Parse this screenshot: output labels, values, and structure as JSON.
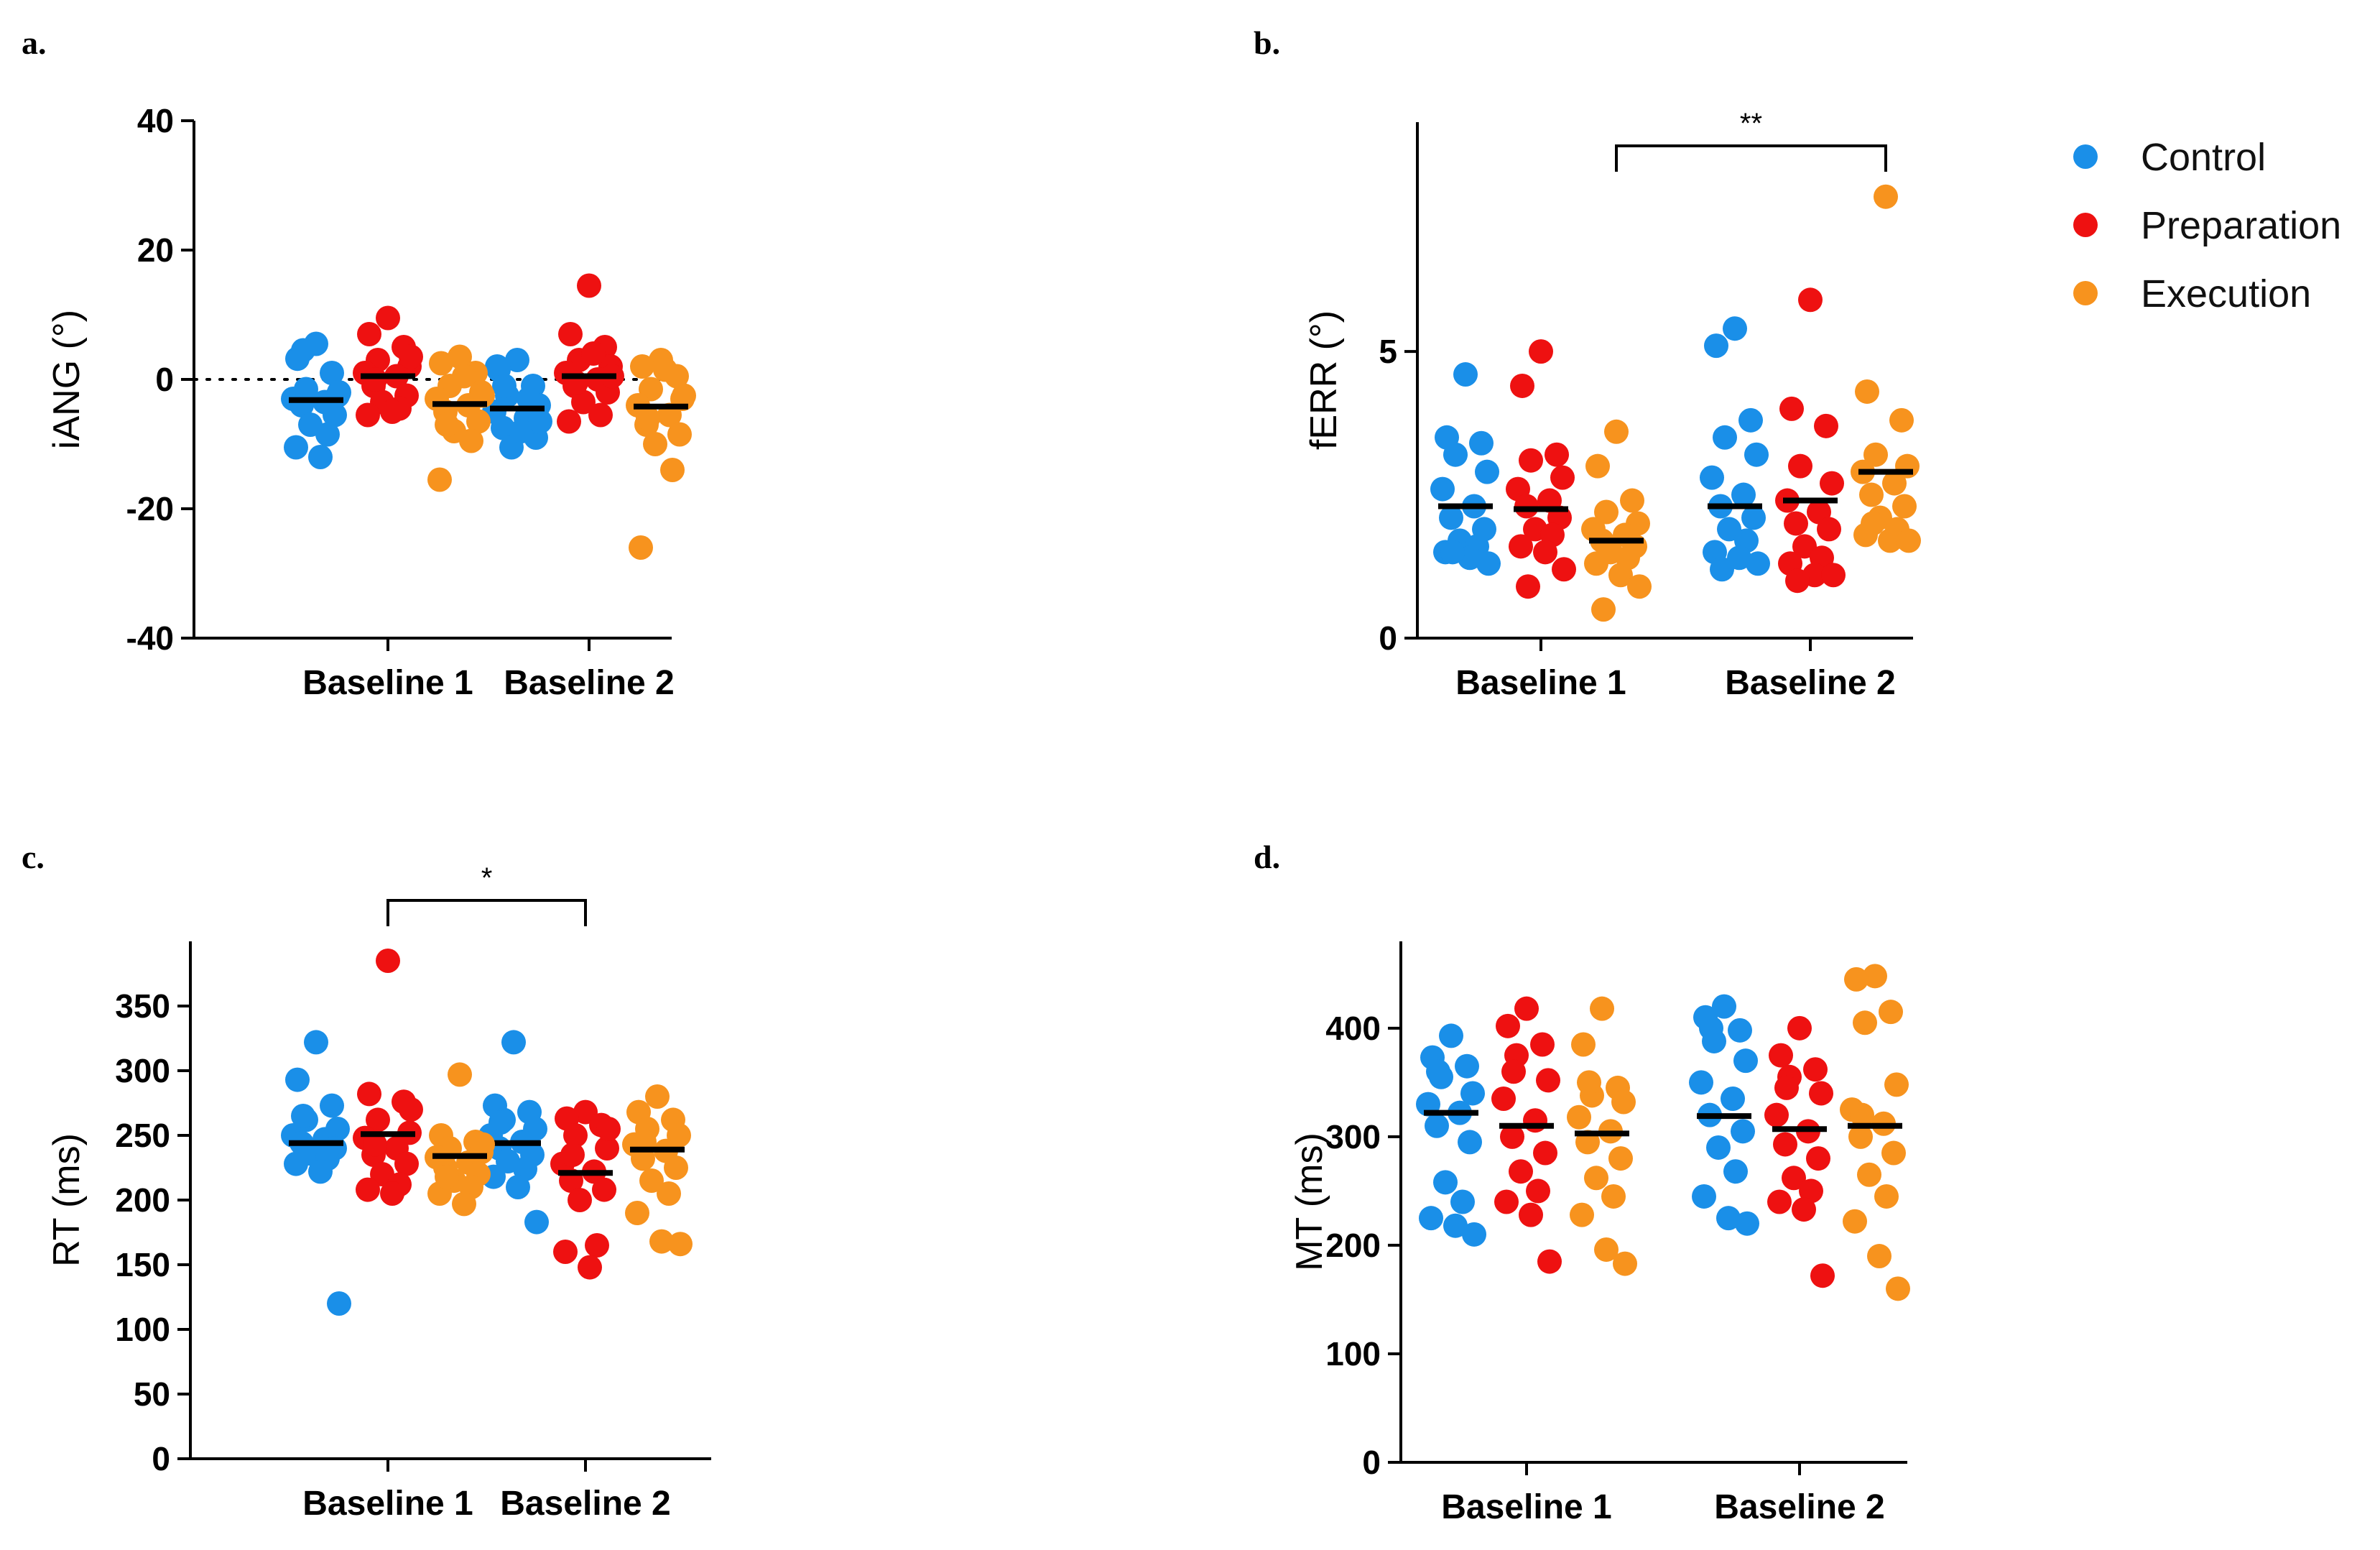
{
  "colors": {
    "Control": "#1a8fe8",
    "Preparation": "#ee1111",
    "Execution": "#f7931e"
  },
  "legend": {
    "items": [
      "Control",
      "Preparation",
      "Execution"
    ],
    "placement": "top-right"
  },
  "chart_data": [
    {
      "id": "a",
      "panel_label": "a.",
      "type": "scatter",
      "ylabel": "iANG (°)",
      "ylim": [
        -40,
        40
      ],
      "yticks": [
        -40,
        -20,
        0,
        20,
        40
      ],
      "categories": [
        "Baseline 1",
        "Baseline 2"
      ],
      "zero_line": true,
      "series": [
        {
          "name": "Control",
          "values": [
            [
              5.5,
              3.2,
              1.0,
              -1.5,
              -2.5,
              -3.0,
              -3.5,
              -4.0,
              -5.5,
              -7.0,
              -8.5,
              -10.5,
              -12.0,
              -2.0,
              4.5
            ],
            [
              3.0,
              1.5,
              -1.0,
              -2.5,
              -4.0,
              -5.0,
              -6.0,
              -7.5,
              -9.0,
              -10.5,
              -3.0,
              2.0,
              -8.0,
              -6.5,
              -1.0
            ]
          ],
          "means": [
            -3.2,
            -4.5
          ]
        },
        {
          "name": "Preparation",
          "values": [
            [
              9.5,
              7.0,
              5.0,
              3.0,
              2.0,
              1.0,
              0.5,
              -1.0,
              -2.5,
              -3.5,
              -4.5,
              -5.5,
              -5.0,
              3.5,
              0.0
            ],
            [
              14.5,
              7.0,
              5.0,
              3.0,
              2.0,
              1.0,
              0.0,
              -1.0,
              -2.0,
              -3.5,
              -5.5,
              -6.5,
              4.0,
              0.5,
              -0.5
            ]
          ],
          "means": [
            0.5,
            0.5
          ]
        },
        {
          "name": "Execution",
          "values": [
            [
              3.5,
              2.5,
              1.0,
              -1.0,
              -2.0,
              -3.0,
              -4.0,
              -5.0,
              -6.5,
              -8.0,
              -9.5,
              -15.5,
              0.5,
              -2.5,
              -7.0
            ],
            [
              3.0,
              2.0,
              0.5,
              -1.5,
              -3.0,
              -4.0,
              -5.5,
              -7.0,
              -8.5,
              -10.0,
              -14.0,
              -26.0,
              1.5,
              -2.5,
              -6.0
            ]
          ],
          "means": [
            -3.8,
            -4.2
          ]
        }
      ]
    },
    {
      "id": "b",
      "panel_label": "b.",
      "type": "scatter",
      "ylabel": "fERR (°)",
      "ylim": [
        0,
        9
      ],
      "yticks": [
        0,
        5
      ],
      "categories": [
        "Baseline 1",
        "Baseline 2"
      ],
      "significance": {
        "label": "**",
        "from": [
          0,
          2
        ],
        "to": [
          1,
          2
        ]
      },
      "series": [
        {
          "name": "Control",
          "values": [
            [
              4.6,
              3.5,
              3.4,
              3.2,
              2.9,
              2.6,
              2.3,
              2.1,
              1.9,
              1.7,
              1.6,
              1.5,
              1.4,
              1.3,
              1.5
            ],
            [
              5.4,
              5.1,
              3.8,
              3.5,
              3.2,
              2.8,
              2.5,
              2.3,
              2.1,
              1.9,
              1.7,
              1.5,
              1.4,
              1.3,
              1.2
            ]
          ],
          "means": [
            2.3,
            2.3
          ]
        },
        {
          "name": "Preparation",
          "values": [
            [
              5.0,
              4.4,
              3.2,
              3.1,
              2.8,
              2.6,
              2.4,
              2.3,
              2.1,
              1.9,
              1.8,
              1.6,
              1.5,
              1.2,
              0.9
            ],
            [
              5.9,
              4.0,
              3.7,
              3.0,
              2.7,
              2.4,
              2.2,
              2.0,
              1.9,
              1.6,
              1.4,
              1.3,
              1.1,
              1.1,
              1.0
            ]
          ],
          "means": [
            2.25,
            2.4
          ]
        },
        {
          "name": "Execution",
          "values": [
            [
              3.6,
              3.0,
              2.4,
              2.2,
              2.0,
              1.9,
              1.8,
              1.7,
              1.6,
              1.5,
              1.4,
              1.3,
              1.1,
              0.9,
              0.5
            ],
            [
              7.7,
              4.3,
              3.8,
              3.2,
              3.0,
              2.9,
              2.7,
              2.5,
              2.3,
              2.1,
              1.9,
              1.8,
              1.7,
              1.7,
              2.0
            ]
          ],
          "means": [
            1.7,
            2.9
          ]
        }
      ]
    },
    {
      "id": "c",
      "panel_label": "c.",
      "type": "scatter",
      "ylabel": "RT (ms)",
      "ylim": [
        0,
        400
      ],
      "yticks": [
        0,
        50,
        100,
        150,
        200,
        250,
        300,
        350
      ],
      "categories": [
        "Baseline 1",
        "Baseline 2"
      ],
      "significance": {
        "label": "*",
        "from": [
          0,
          1
        ],
        "to": [
          1,
          1
        ]
      },
      "series": [
        {
          "name": "Control",
          "values": [
            [
              322,
              293,
              273,
              262,
              255,
              250,
              247,
              244,
              240,
              236,
              232,
              228,
              222,
              120,
              265
            ],
            [
              322,
              273,
              268,
              262,
              255,
              250,
              245,
              240,
              235,
              230,
              224,
              218,
              210,
              183,
              260
            ]
          ],
          "means": [
            244,
            244
          ]
        },
        {
          "name": "Preparation",
          "values": [
            [
              385,
              282,
              276,
              262,
              252,
              248,
              240,
              235,
              228,
              220,
              212,
              208,
              205,
              270,
              243
            ],
            [
              268,
              263,
              258,
              250,
              240,
              228,
              222,
              215,
              208,
              200,
              165,
              160,
              148,
              255,
              235
            ]
          ],
          "means": [
            251,
            221
          ]
        },
        {
          "name": "Execution",
          "values": [
            [
              297,
              250,
              245,
              240,
              237,
              233,
              229,
              225,
              220,
              215,
              210,
              205,
              197,
              243,
              218
            ],
            [
              280,
              268,
              262,
              255,
              250,
              243,
              238,
              232,
              225,
              215,
              205,
              190,
              168,
              166,
              245
            ]
          ],
          "means": [
            234,
            239
          ]
        }
      ]
    },
    {
      "id": "d",
      "panel_label": "d.",
      "type": "scatter",
      "ylabel": "MT (ms)",
      "ylim": [
        0,
        480
      ],
      "yticks": [
        0,
        100,
        200,
        300,
        400
      ],
      "categories": [
        "Baseline 1",
        "Baseline 2"
      ],
      "series": [
        {
          "name": "Control",
          "values": [
            [
              393,
              373,
              365,
              355,
              340,
              330,
              322,
              310,
              295,
              258,
              240,
              225,
              218,
              210,
              360
            ],
            [
              420,
              410,
              398,
              388,
              370,
              350,
              335,
              320,
              305,
              290,
              268,
              245,
              225,
              220,
              400
            ]
          ],
          "means": [
            322,
            319
          ]
        },
        {
          "name": "Preparation",
          "values": [
            [
              418,
              402,
              385,
              375,
              352,
              335,
              315,
              300,
              285,
              268,
              250,
              240,
              228,
              185,
              360
            ],
            [
              400,
              375,
              362,
              355,
              340,
              320,
              305,
              293,
              280,
              262,
              250,
              240,
              233,
              172,
              345
            ]
          ],
          "means": [
            310,
            307
          ]
        },
        {
          "name": "Execution",
          "values": [
            [
              418,
              385,
              345,
              338,
              332,
              318,
              305,
              295,
              280,
              262,
              245,
              228,
              196,
              183,
              350
            ],
            [
              448,
              445,
              415,
              405,
              348,
              325,
              312,
              300,
              285,
              265,
              245,
              222,
              190,
              160,
              320
            ]
          ],
          "means": [
            303,
            310
          ]
        }
      ]
    }
  ]
}
